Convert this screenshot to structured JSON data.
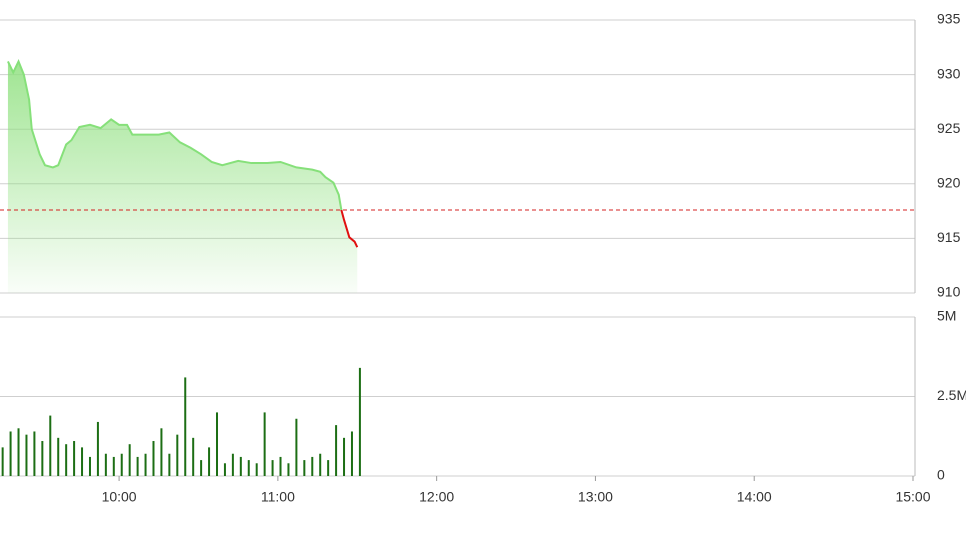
{
  "chart_data": [
    {
      "type": "area",
      "x": [
        "09:18",
        "09:20",
        "09:22",
        "09:24",
        "09:26",
        "09:27",
        "09:30",
        "09:32",
        "09:35",
        "09:37",
        "09:40",
        "09:42",
        "09:45",
        "09:49",
        "09:53",
        "09:57",
        "10:00",
        "10:03",
        "10:05",
        "10:10",
        "10:15",
        "10:19",
        "10:23",
        "10:27",
        "10:31",
        "10:35",
        "10:39",
        "10:45",
        "10:50",
        "10:56",
        "11:01",
        "11:07",
        "11:13",
        "11:16",
        "11:18",
        "11:21",
        "11:23",
        "11:24",
        "11:25",
        "11:27",
        "11:29",
        "11:30"
      ],
      "values": [
        931.2,
        930.2,
        931.2,
        930,
        927.7,
        925,
        922.7,
        921.7,
        921.5,
        921.7,
        923.6,
        924,
        925.2,
        925.4,
        925.1,
        925.9,
        925.4,
        925.4,
        924.5,
        924.5,
        924.5,
        924.7,
        923.8,
        923.3,
        922.7,
        922,
        921.7,
        922.1,
        921.9,
        921.9,
        922,
        921.5,
        921.3,
        921.1,
        920.6,
        920.1,
        919,
        917.6,
        916.7,
        915.1,
        914.7,
        914.2
      ],
      "reference": 917.6,
      "xlim": [
        "09:15",
        "15:00"
      ],
      "ylim": [
        910,
        935
      ],
      "yticks": [
        910,
        915,
        920,
        925,
        930,
        935
      ],
      "up_color": "#86e07a",
      "down_color": "#e01010",
      "reference_color": "#d42020",
      "grid": true
    },
    {
      "type": "bar",
      "x": [
        "09:16",
        "09:19",
        "09:22",
        "09:25",
        "09:28",
        "09:31",
        "09:34",
        "09:37",
        "09:40",
        "09:43",
        "09:46",
        "09:49",
        "09:52",
        "09:55",
        "09:58",
        "10:01",
        "10:04",
        "10:07",
        "10:10",
        "10:13",
        "10:16",
        "10:19",
        "10:22",
        "10:25",
        "10:28",
        "10:31",
        "10:34",
        "10:37",
        "10:40",
        "10:43",
        "10:46",
        "10:49",
        "10:52",
        "10:55",
        "10:58",
        "11:01",
        "11:04",
        "11:07",
        "11:10",
        "11:13",
        "11:16",
        "11:19",
        "11:22",
        "11:25",
        "11:28",
        "11:31"
      ],
      "values": [
        0.9,
        1.4,
        1.5,
        1.3,
        1.4,
        1.1,
        1.9,
        1.2,
        1.0,
        1.1,
        0.9,
        0.6,
        1.7,
        0.7,
        0.6,
        0.7,
        1.0,
        0.6,
        0.7,
        1.1,
        1.5,
        0.7,
        1.3,
        3.1,
        1.2,
        0.5,
        0.9,
        2.0,
        0.4,
        0.7,
        0.6,
        0.5,
        0.4,
        2.0,
        0.5,
        0.6,
        0.4,
        1.8,
        0.5,
        0.6,
        0.7,
        0.5,
        1.6,
        1.2,
        1.4,
        3.4
      ],
      "xlim": [
        "09:15",
        "15:00"
      ],
      "xticks": [
        "10:00",
        "11:00",
        "12:00",
        "13:00",
        "14:00",
        "15:00"
      ],
      "ylim": [
        0,
        5
      ],
      "yticks": [
        0,
        {
          "value": 2.5,
          "label": "2.5M"
        },
        {
          "value": 5,
          "label": "5M"
        }
      ],
      "color": "#1c6e14",
      "grid": true
    }
  ]
}
